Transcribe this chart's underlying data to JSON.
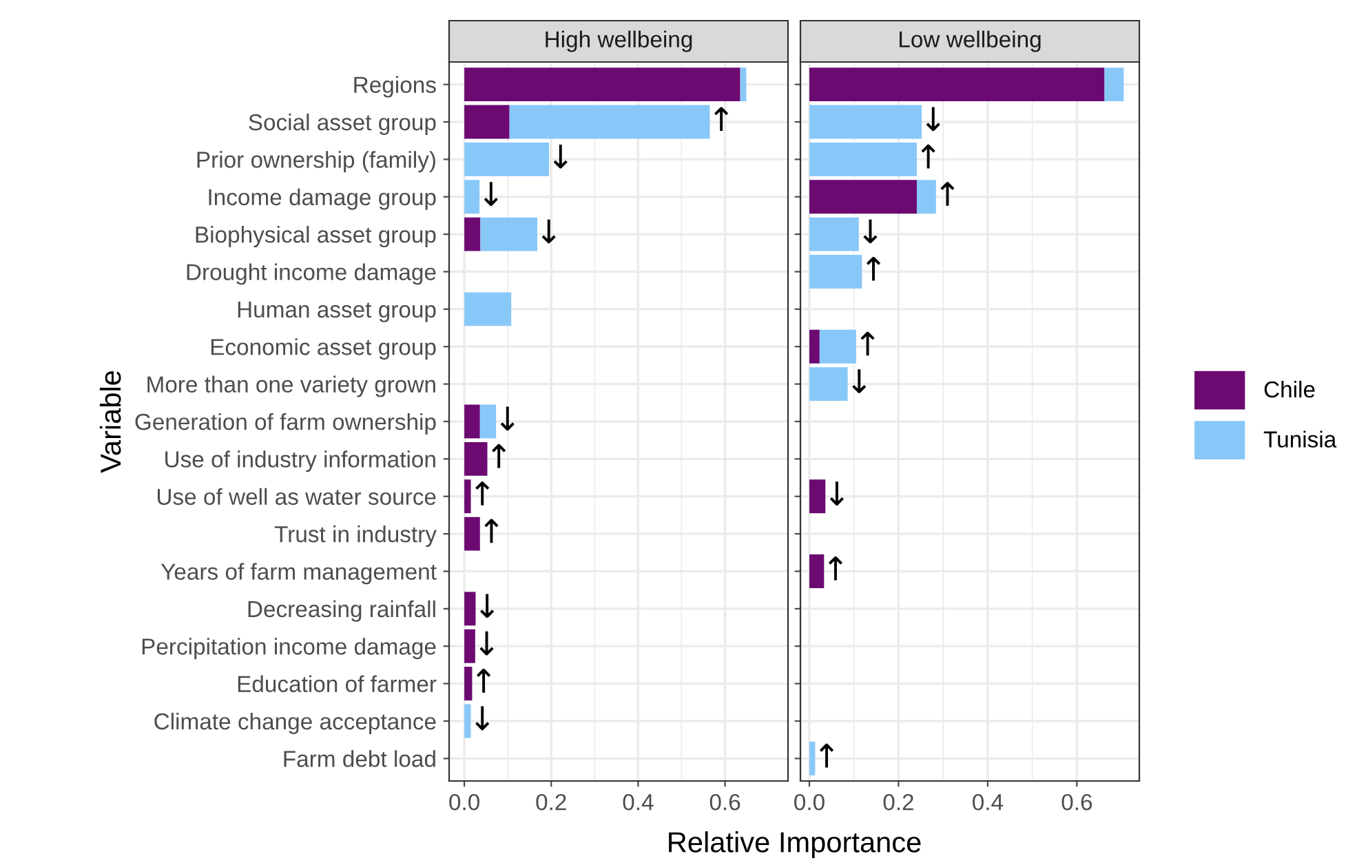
{
  "chart_data": [
    {
      "type": "bar",
      "orientation": "horizontal",
      "stacked": true,
      "title": "High wellbeing",
      "ylabel": "Variable",
      "xlabel": "Relative Importance",
      "categories": [
        "Regions",
        "Social asset group",
        "Prior ownership (family)",
        "Income damage group",
        "Biophysical asset group",
        "Drought income damage",
        "Human asset group",
        "Economic asset group",
        "More than one variety grown",
        "Generation of farm ownership",
        "Use of industry information",
        "Use of well as water source",
        "Trust in industry",
        "Years of farm management",
        "Decreasing rainfall",
        "Percipitation income damage",
        "Education of farmer",
        "Climate change acceptance",
        "Farm debt load"
      ],
      "series": [
        {
          "name": "Chile",
          "color": "#6c0a72",
          "values": [
            0.635,
            0.104,
            null,
            null,
            0.037,
            null,
            null,
            null,
            null,
            0.036,
            0.053,
            0.015,
            0.036,
            null,
            0.026,
            0.025,
            0.018,
            null,
            null
          ]
        },
        {
          "name": "Tunisia",
          "color": "#88c8f8",
          "values": [
            0.014,
            0.461,
            0.195,
            0.035,
            0.131,
            null,
            0.108,
            null,
            null,
            0.037,
            null,
            null,
            null,
            null,
            null,
            null,
            null,
            0.015,
            null
          ]
        }
      ],
      "annotations": [
        {
          "text": "↑",
          "x": 0.565,
          "y": "Social asset group"
        },
        {
          "text": "↓",
          "x": 0.195,
          "y": "Prior ownership (family)"
        },
        {
          "text": "↓",
          "x": 0.035,
          "y": "Income damage group"
        },
        {
          "text": "↓",
          "x": 0.168,
          "y": "Biophysical asset group"
        },
        {
          "text": "↓",
          "x": 0.073,
          "y": "Generation of farm ownership"
        },
        {
          "text": "↑",
          "x": 0.053,
          "y": "Use of industry information"
        },
        {
          "text": "↑",
          "x": 0.015,
          "y": "Use of well as water source"
        },
        {
          "text": "↑",
          "x": 0.036,
          "y": "Trust in industry"
        },
        {
          "text": "↓",
          "x": 0.026,
          "y": "Decreasing rainfall"
        },
        {
          "text": "↓",
          "x": 0.025,
          "y": "Percipitation income damage"
        },
        {
          "text": "↑",
          "x": 0.018,
          "y": "Education of farmer"
        },
        {
          "text": "↓",
          "x": 0.015,
          "y": "Climate change acceptance"
        }
      ],
      "xlim": [
        -0.035,
        0.745
      ],
      "xticks": [
        {
          "value": 0,
          "label": "0.0"
        },
        0.2,
        0.4,
        0.6
      ],
      "grid": true,
      "legend": "right"
    },
    {
      "type": "bar",
      "orientation": "horizontal",
      "stacked": true,
      "title": "Low wellbeing",
      "tick_labels": "x",
      "categories": [
        "Regions",
        "Social asset group",
        "Prior ownership (family)",
        "Income damage group",
        "Biophysical asset group",
        "Drought income damage",
        "Human asset group",
        "Economic asset group",
        "More than one variety grown",
        "Generation of farm ownership",
        "Use of industry information",
        "Use of well as water source",
        "Trust in industry",
        "Years of farm management",
        "Decreasing rainfall",
        "Percipitation income damage",
        "Education of farmer",
        "Climate change acceptance",
        "Farm debt load"
      ],
      "series": [
        {
          "color": "#6c0a72",
          "values": [
            0.662,
            null,
            null,
            0.241,
            null,
            null,
            null,
            0.023,
            null,
            null,
            null,
            0.036,
            null,
            0.033,
            null,
            null,
            null,
            null,
            null
          ]
        },
        {
          "color": "#88c8f8",
          "values": [
            0.043,
            0.252,
            0.241,
            0.043,
            0.111,
            0.118,
            null,
            0.082,
            0.086,
            null,
            null,
            null,
            null,
            null,
            null,
            null,
            null,
            null,
            0.013
          ]
        }
      ],
      "annotations": [
        {
          "text": "↓",
          "x": 0.252,
          "y": "Social asset group"
        },
        {
          "text": "↑",
          "x": 0.241,
          "y": "Prior ownership (family)"
        },
        {
          "text": "↑",
          "x": 0.284,
          "y": "Income damage group"
        },
        {
          "text": "↓",
          "x": 0.111,
          "y": "Biophysical asset group"
        },
        {
          "text": "↑",
          "x": 0.118,
          "y": "Drought income damage"
        },
        {
          "text": "↑",
          "x": 0.105,
          "y": "Economic asset group"
        },
        {
          "text": "↓",
          "x": 0.086,
          "y": "More than one variety grown"
        },
        {
          "text": "↓",
          "x": 0.036,
          "y": "Use of well as water source"
        },
        {
          "text": "↑",
          "x": 0.033,
          "y": "Years of farm management"
        },
        {
          "text": "↑",
          "x": 0.013,
          "y": "Farm debt load"
        }
      ],
      "xlim": [
        -0.02,
        0.74
      ],
      "xticks": [
        {
          "value": 0,
          "label": "0.0"
        },
        0.2,
        0.4,
        0.6
      ],
      "grid": true
    }
  ]
}
